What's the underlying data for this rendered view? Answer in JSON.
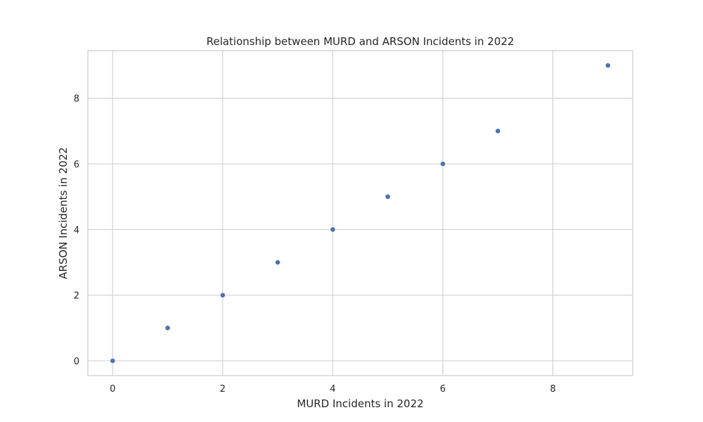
{
  "chart_data": {
    "type": "scatter",
    "title": "Relationship between MURD and ARSON Incidents in 2022",
    "xlabel": "MURD Incidents in 2022",
    "ylabel": "ARSON Incidents in 2022",
    "xlim": [
      -0.45,
      9.45
    ],
    "ylim": [
      -0.45,
      9.45
    ],
    "xticks": [
      0,
      2,
      4,
      6,
      8
    ],
    "yticks": [
      0,
      2,
      4,
      6,
      8
    ],
    "grid": true,
    "colors": {
      "points": "#4c72b0",
      "grid": "#cccccc",
      "frame": "#cccccc",
      "text": "#262626"
    },
    "series": [
      {
        "x": [
          0,
          1,
          2,
          3,
          4,
          5,
          6,
          7,
          9
        ],
        "y": [
          0,
          1,
          2,
          3,
          4,
          5,
          6,
          7,
          9
        ]
      }
    ]
  }
}
